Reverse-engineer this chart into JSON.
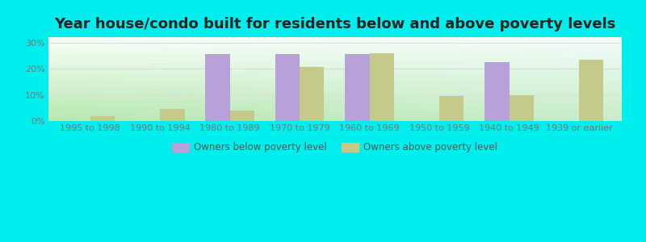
{
  "title": "Year house/condo built for residents below and above poverty levels",
  "categories": [
    "1995 to 1998",
    "1990 to 1994",
    "1980 to 1989",
    "1970 to 1979",
    "1960 to 1969",
    "1950 to 1959",
    "1940 to 1949",
    "1939 or earlier"
  ],
  "below_poverty": [
    0,
    0,
    25.5,
    25.5,
    25.5,
    0,
    22.5,
    0
  ],
  "above_poverty": [
    2.0,
    4.5,
    4.0,
    20.5,
    26.0,
    9.5,
    10.0,
    23.5
  ],
  "below_color": "#b8a0d8",
  "above_color": "#c5c98a",
  "background_color": "#00eeee",
  "ylim": [
    0,
    32
  ],
  "yticks": [
    0,
    10,
    20,
    30
  ],
  "ytick_labels": [
    "0%",
    "10%",
    "20%",
    "30%"
  ],
  "bar_width": 0.35,
  "legend_below": "Owners below poverty level",
  "legend_above": "Owners above poverty level",
  "title_fontsize": 13,
  "tick_fontsize": 8,
  "grad_colors": [
    "#b8e8b0",
    "#e8f8e0",
    "#f0faf0",
    "#ffffff"
  ],
  "grid_color": "#dddddd"
}
